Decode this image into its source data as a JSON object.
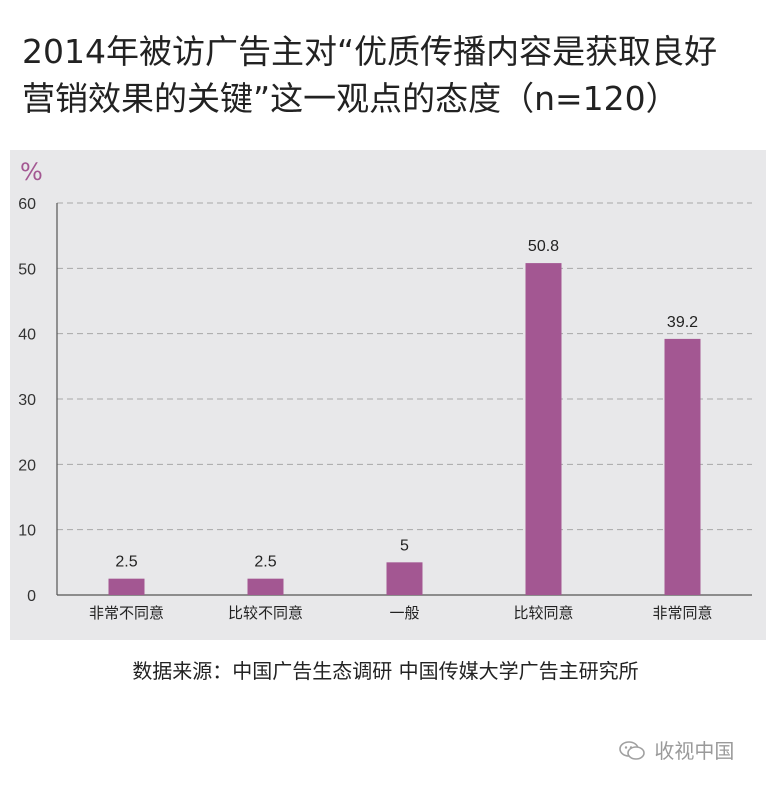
{
  "title": {
    "line1": "2014年被访广告主对“优质传播内容是获取良好",
    "line2": "营销效果的关键”这一观点的态度（n=120）"
  },
  "chart_data": {
    "type": "bar",
    "ylabel": "%",
    "ylim": [
      0,
      60
    ],
    "yticks": [
      "0",
      "10",
      "20",
      "30",
      "40",
      "50",
      "60"
    ],
    "categories": [
      "非常不同意",
      "比较不同意",
      "一般",
      "比较同意",
      "非常同意"
    ],
    "values": [
      2.5,
      2.5,
      5,
      50.8,
      39.2
    ],
    "data_labels": [
      "2.5",
      "2.5",
      "5",
      "50.8",
      "39.2"
    ],
    "bar_color": "#a35792",
    "grid": true,
    "grid_style": "dashed"
  },
  "source": "数据来源：中国广告生态调研 中国传媒大学广告主研究所",
  "watermark": {
    "icon": "wechat-icon",
    "text": "收视中国"
  }
}
